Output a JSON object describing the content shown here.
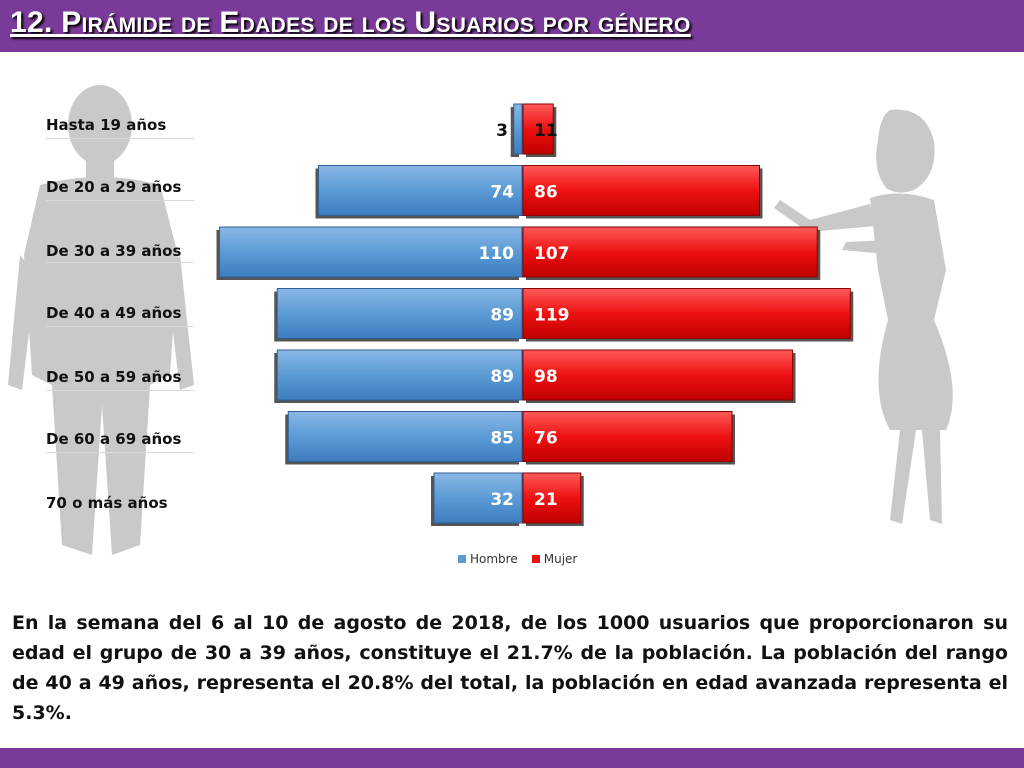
{
  "header": {
    "title": "12. Pirámide de Edades de los Usuarios por género"
  },
  "colors": {
    "hombre": "#5b9bd5",
    "mujer": "#ee1111",
    "accent": "#7a3a99"
  },
  "chart_data": {
    "type": "bar",
    "orientation": "horizontal-diverging",
    "title": "",
    "categories": [
      "Hasta 19 años",
      "De 20 a 29 años",
      "De 30 a 39 años",
      "De 40 a 49 años",
      "De 50 a 59 años",
      "De 60 a 69 años",
      "70 o más años"
    ],
    "series": [
      {
        "name": "Hombre",
        "values": [
          3,
          74,
          110,
          89,
          89,
          85,
          32
        ]
      },
      {
        "name": "Mujer",
        "values": [
          11,
          86,
          107,
          119,
          98,
          76,
          21
        ]
      }
    ],
    "xlim": [
      -120,
      120
    ],
    "legend_position": "bottom-center",
    "grid": false
  },
  "legend": {
    "items": [
      "Hombre",
      "Mujer"
    ]
  },
  "caption": "En la semana del 6 al 10 de agosto de 2018, de los 1000 usuarios  que proporcionaron su edad el grupo de 30 a 39 años, constituye el 21.7% de la población. La población del rango de 40 a 49 años, representa el 20.8% del total, la población en edad avanzada representa el 5.3%."
}
